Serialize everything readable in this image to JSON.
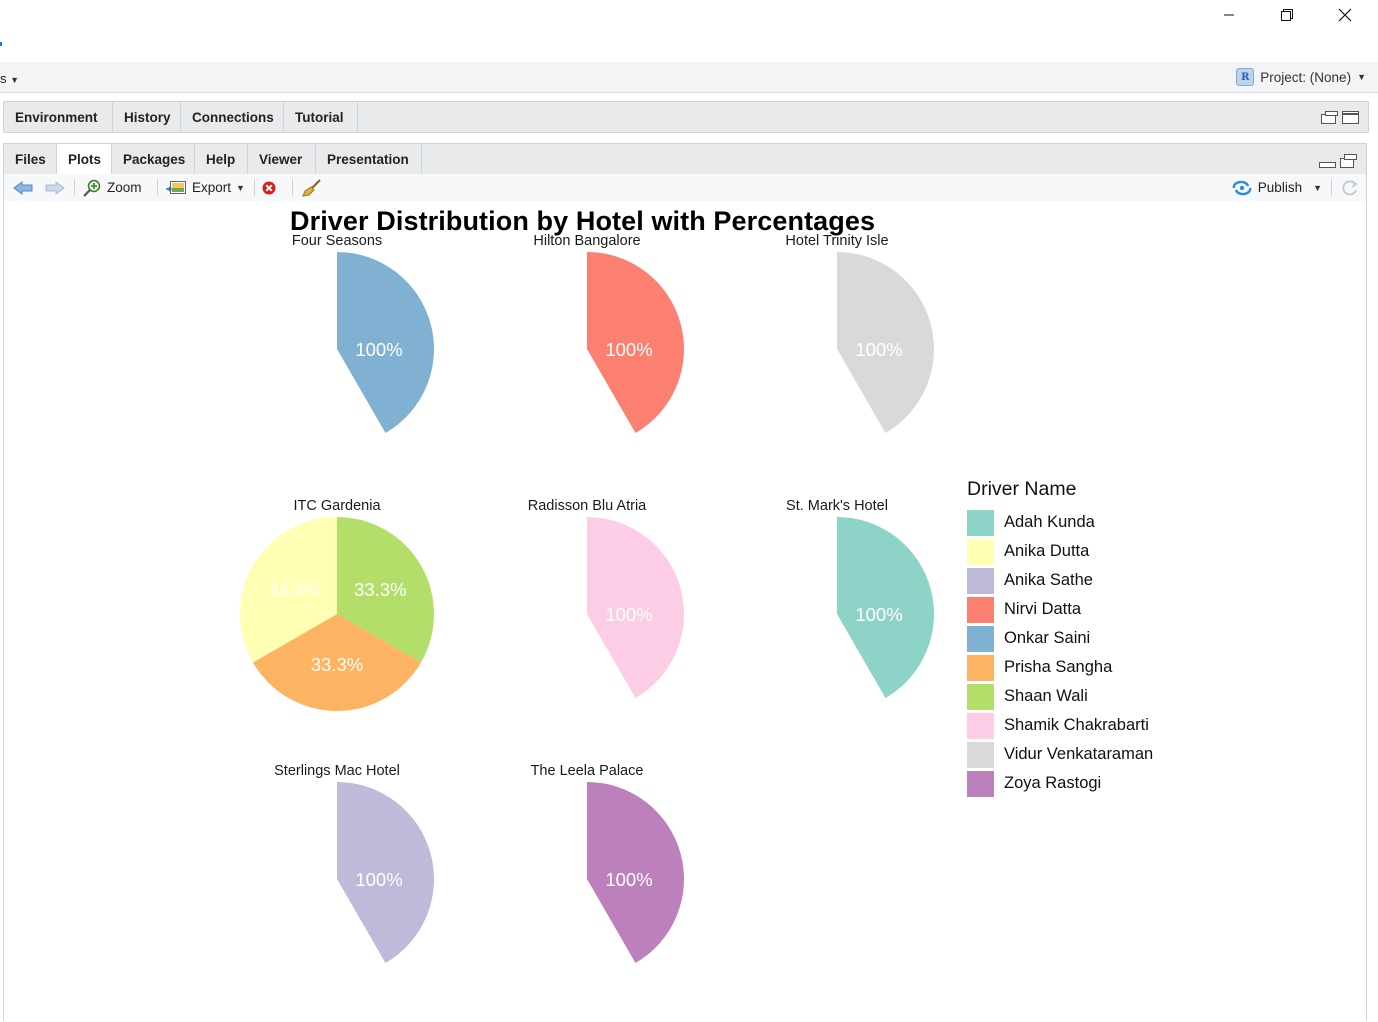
{
  "menubar": {
    "left_fragment": "s",
    "project_label": "Project: (None)"
  },
  "env_pane": {
    "tabs": [
      "Environment",
      "History",
      "Connections",
      "Tutorial"
    ]
  },
  "files_pane": {
    "tabs": [
      "Files",
      "Plots",
      "Packages",
      "Help",
      "Viewer",
      "Presentation"
    ],
    "active_tab": "Plots",
    "toolbar": {
      "zoom": "Zoom",
      "export": "Export",
      "publish": "Publish"
    }
  },
  "chart_data": {
    "type": "pie",
    "title": "Driver Distribution by Hotel with Percentages",
    "legend_title": "Driver Name",
    "legend_position": "right",
    "drivers": [
      {
        "name": "Adah Kunda",
        "color": "#8DD3C7"
      },
      {
        "name": "Anika Dutta",
        "color": "#FFFFB3"
      },
      {
        "name": "Anika Sathe",
        "color": "#BEBADA"
      },
      {
        "name": "Nirvi Datta",
        "color": "#FB8072"
      },
      {
        "name": "Onkar Saini",
        "color": "#80B1D3"
      },
      {
        "name": "Prisha Sangha",
        "color": "#FDB462"
      },
      {
        "name": "Shaan Wali",
        "color": "#B3DE69"
      },
      {
        "name": "Shamik Chakrabarti",
        "color": "#FCCDE5"
      },
      {
        "name": "Vidur Venkataraman",
        "color": "#D9D9D9"
      },
      {
        "name": "Zoya Rastogi",
        "color": "#BC80BD"
      }
    ],
    "facets": [
      {
        "hotel": "Four Seasons",
        "slices": [
          {
            "driver": "Onkar Saini",
            "percent": 100,
            "label": "100%"
          }
        ]
      },
      {
        "hotel": "Hilton Bangalore",
        "slices": [
          {
            "driver": "Nirvi Datta",
            "percent": 100,
            "label": "100%"
          }
        ]
      },
      {
        "hotel": "Hotel Trinity Isle",
        "slices": [
          {
            "driver": "Vidur Venkataraman",
            "percent": 100,
            "label": "100%"
          }
        ]
      },
      {
        "hotel": "ITC Gardenia",
        "slices": [
          {
            "driver": "Shaan Wali",
            "percent": 33.3,
            "label": "33.3%"
          },
          {
            "driver": "Prisha Sangha",
            "percent": 33.3,
            "label": "33.3%"
          },
          {
            "driver": "Anika Dutta",
            "percent": 33.3,
            "label": "33.3%"
          }
        ]
      },
      {
        "hotel": "Radisson Blu Atria",
        "slices": [
          {
            "driver": "Shamik Chakrabarti",
            "percent": 100,
            "label": "100%"
          }
        ]
      },
      {
        "hotel": "St. Mark's Hotel",
        "slices": [
          {
            "driver": "Adah Kunda",
            "percent": 100,
            "label": "100%"
          }
        ]
      },
      {
        "hotel": "Sterlings Mac Hotel",
        "slices": [
          {
            "driver": "Anika Sathe",
            "percent": 100,
            "label": "100%"
          }
        ]
      },
      {
        "hotel": "The Leela Palace",
        "slices": [
          {
            "driver": "Zoya Rastogi",
            "percent": 100,
            "label": "100%"
          }
        ]
      }
    ]
  }
}
